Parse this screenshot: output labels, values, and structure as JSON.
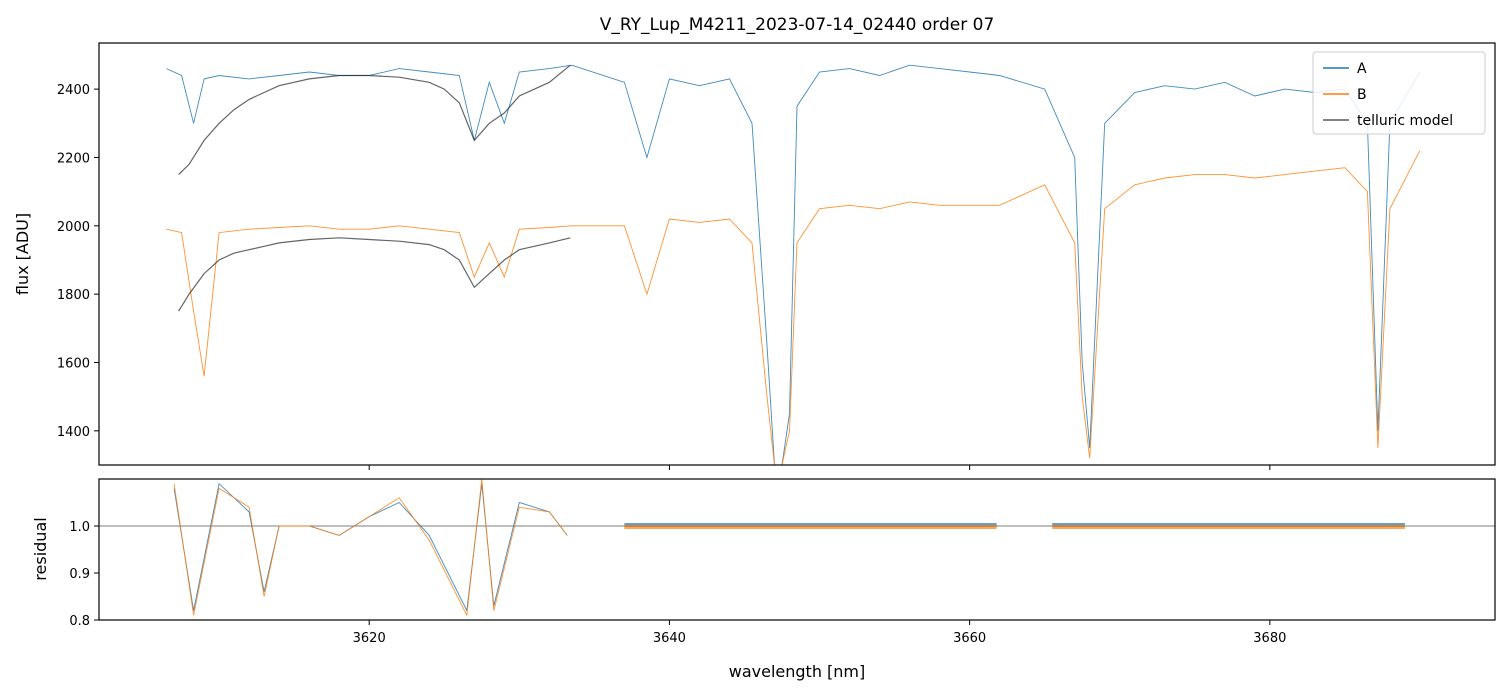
{
  "chart_data": [
    {
      "type": "line",
      "title": "V_RY_Lup_M4211_2023-07-14_02440  order 07",
      "xlabel": "",
      "ylabel": "flux [ADU]",
      "xlim": [
        3602,
        3695
      ],
      "ylim": [
        1300,
        2535
      ],
      "yticks": [
        1400,
        1600,
        1800,
        2000,
        2200,
        2400
      ],
      "xticks": [
        3620,
        3640,
        3660,
        3680
      ],
      "legend_position": "top-right",
      "colors": {
        "A": "#1f77b4",
        "B": "#ff7f0e",
        "telluric model": "#222222"
      },
      "legend": [
        "A",
        "B",
        "telluric model"
      ],
      "series": [
        {
          "name": "A",
          "x": [
            3606.5,
            3607.5,
            3608.3,
            3609.0,
            3610.0,
            3612.0,
            3614.0,
            3616.0,
            3618.0,
            3620.0,
            3622.0,
            3624.0,
            3626.0,
            3627.0,
            3628.0,
            3629.0,
            3630.0,
            3632.0,
            3633.5,
            3637.0,
            3638.5,
            3640.0,
            3642.0,
            3644.0,
            3645.5,
            3646.5,
            3647.0,
            3647.5,
            3648.0,
            3648.5,
            3650.0,
            3652.0,
            3654.0,
            3656.0,
            3658.0,
            3660.0,
            3662.0,
            3665.0,
            3667.0,
            3667.5,
            3668.0,
            3669.0,
            3671.0,
            3673.0,
            3675.0,
            3677.0,
            3679.0,
            3681.0,
            3683.0,
            3685.0,
            3686.5,
            3687.2,
            3688.0,
            3690.0
          ],
          "y": [
            2460,
            2440,
            2300,
            2430,
            2440,
            2430,
            2440,
            2450,
            2440,
            2440,
            2460,
            2450,
            2440,
            2250,
            2420,
            2300,
            2450,
            2460,
            2470,
            2420,
            2200,
            2430,
            2410,
            2430,
            2300,
            1650,
            1300,
            1300,
            1450,
            2350,
            2450,
            2460,
            2440,
            2470,
            2460,
            2450,
            2440,
            2400,
            2200,
            1600,
            1350,
            2300,
            2390,
            2410,
            2400,
            2420,
            2380,
            2400,
            2390,
            2400,
            2300,
            1400,
            2300,
            2450
          ]
        },
        {
          "name": "B",
          "x": [
            3606.5,
            3607.5,
            3608.3,
            3609.0,
            3610.0,
            3612.0,
            3614.0,
            3616.0,
            3618.0,
            3620.0,
            3622.0,
            3624.0,
            3626.0,
            3627.0,
            3628.0,
            3629.0,
            3630.0,
            3632.0,
            3633.5,
            3637.0,
            3638.5,
            3640.0,
            3642.0,
            3644.0,
            3645.5,
            3646.5,
            3647.0,
            3647.5,
            3648.0,
            3648.5,
            3650.0,
            3652.0,
            3654.0,
            3656.0,
            3658.0,
            3660.0,
            3662.0,
            3665.0,
            3667.0,
            3667.5,
            3668.0,
            3669.0,
            3671.0,
            3673.0,
            3675.0,
            3677.0,
            3679.0,
            3681.0,
            3683.0,
            3685.0,
            3686.5,
            3687.2,
            3688.0,
            3690.0
          ],
          "y": [
            1990,
            1980,
            1750,
            1560,
            1980,
            1990,
            1995,
            2000,
            1990,
            1990,
            2000,
            1990,
            1980,
            1850,
            1950,
            1850,
            1990,
            1995,
            2000,
            2000,
            1800,
            2020,
            2010,
            2020,
            1950,
            1500,
            1300,
            1300,
            1400,
            1950,
            2050,
            2060,
            2050,
            2070,
            2060,
            2060,
            2060,
            2120,
            1950,
            1500,
            1320,
            2050,
            2120,
            2140,
            2150,
            2150,
            2140,
            2150,
            2160,
            2170,
            2100,
            1350,
            2050,
            2220
          ]
        },
        {
          "name": "telluric model",
          "x": [
            3607.3,
            3608.0,
            3609.0,
            3610.0,
            3611.0,
            3612.0,
            3613.0,
            3614.0,
            3616.0,
            3618.0,
            3620.0,
            3622.0,
            3624.0,
            3625.0,
            3626.0,
            3627.0,
            3628.0,
            3629.0,
            3630.0,
            3632.0,
            3633.4
          ],
          "y": [
            2150,
            2180,
            2250,
            2300,
            2340,
            2370,
            2390,
            2410,
            2430,
            2440,
            2440,
            2435,
            2420,
            2400,
            2360,
            2250,
            2300,
            2330,
            2380,
            2420,
            2470
          ]
        },
        {
          "name": "telluric model",
          "x": [
            3607.3,
            3608.0,
            3609.0,
            3610.0,
            3611.0,
            3612.0,
            3613.0,
            3614.0,
            3616.0,
            3618.0,
            3620.0,
            3622.0,
            3624.0,
            3625.0,
            3626.0,
            3627.0,
            3628.0,
            3629.0,
            3630.0,
            3632.0,
            3633.4
          ],
          "y": [
            1750,
            1800,
            1860,
            1900,
            1920,
            1930,
            1940,
            1950,
            1960,
            1965,
            1960,
            1955,
            1945,
            1930,
            1900,
            1820,
            1860,
            1900,
            1930,
            1950,
            1965
          ]
        }
      ]
    },
    {
      "type": "line",
      "title": "",
      "xlabel": "wavelength [nm]",
      "ylabel": "residual",
      "xlim": [
        3602,
        3695
      ],
      "ylim": [
        0.8,
        1.1
      ],
      "yticks": [
        0.8,
        0.9,
        1.0
      ],
      "xticks": [
        3620,
        3640,
        3660,
        3680
      ],
      "tick_labels_x": [
        "3620",
        "3640",
        "3660",
        "3680"
      ],
      "reference_line": 1.0,
      "segments": [
        [
          3606.8,
          3633.3
        ],
        [
          3637.0,
          3661.8
        ],
        [
          3665.5,
          3689.0
        ]
      ],
      "series": [
        {
          "name": "A",
          "x": [
            3607.0,
            3608.3,
            3610.0,
            3612.0,
            3613.0,
            3614.0,
            3616.0,
            3618.0,
            3620.0,
            3622.0,
            3624.0,
            3626.5,
            3627.5,
            3628.3,
            3630.0,
            3632.0,
            3633.2
          ],
          "y": [
            1.08,
            0.82,
            1.09,
            1.03,
            0.86,
            1.0,
            1.0,
            0.98,
            1.02,
            1.05,
            0.98,
            0.82,
            1.09,
            0.83,
            1.05,
            1.03,
            0.98
          ]
        },
        {
          "name": "B",
          "x": [
            3607.0,
            3608.3,
            3610.0,
            3612.0,
            3613.0,
            3614.0,
            3616.0,
            3618.0,
            3620.0,
            3622.0,
            3624.0,
            3626.5,
            3627.5,
            3628.3,
            3630.0,
            3632.0,
            3633.2
          ],
          "y": [
            1.09,
            0.81,
            1.08,
            1.04,
            0.85,
            1.0,
            1.0,
            0.98,
            1.02,
            1.06,
            0.97,
            0.81,
            1.1,
            0.82,
            1.04,
            1.03,
            0.98
          ]
        }
      ]
    }
  ]
}
